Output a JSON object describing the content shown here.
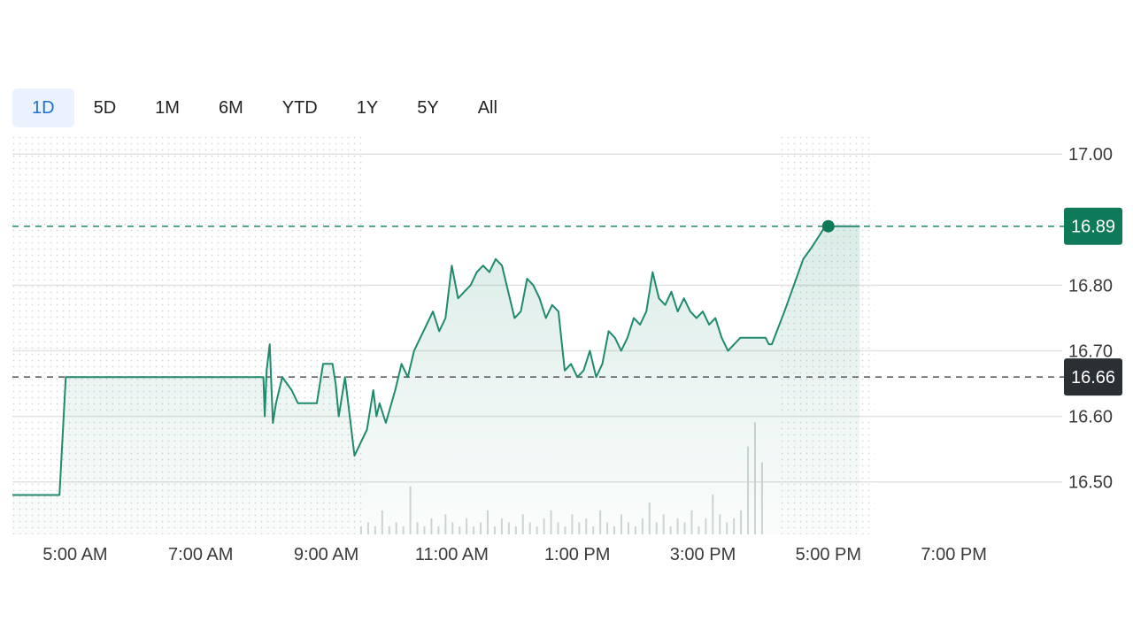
{
  "tabs": [
    {
      "label": "1D",
      "active": true
    },
    {
      "label": "5D",
      "active": false
    },
    {
      "label": "1M",
      "active": false
    },
    {
      "label": "6M",
      "active": false
    },
    {
      "label": "YTD",
      "active": false
    },
    {
      "label": "1Y",
      "active": false
    },
    {
      "label": "5Y",
      "active": false
    },
    {
      "label": "All",
      "active": false
    }
  ],
  "colors": {
    "line": "#1f8a6e",
    "last_badge": "#0f7a5a",
    "prev_badge": "#2a2f33",
    "active_tab_text": "#1f6fd1",
    "active_tab_bg": "#eaf3fd"
  },
  "chart_data": {
    "type": "line",
    "x_tick_labels": [
      "5:00 AM",
      "7:00 AM",
      "9:00 AM",
      "11:00 AM",
      "1:00 PM",
      "3:00 PM",
      "5:00 PM",
      "7:00 PM"
    ],
    "y_tick_labels": [
      "17.00",
      "16.80",
      "16.70",
      "16.60",
      "16.50"
    ],
    "ylim": [
      16.42,
      17.03
    ],
    "xlim_hours": [
      4.0,
      20.5
    ],
    "last_price": "16.89",
    "previous_close": "16.66",
    "grid": true,
    "series": [
      {
        "x": [
          4.0,
          4.75,
          4.85,
          8.0,
          8.02,
          8.05,
          8.1,
          8.15,
          8.2,
          8.3,
          8.45,
          8.55,
          8.7,
          8.85,
          8.95,
          9.1,
          9.15,
          9.2,
          9.3,
          9.45,
          9.55,
          9.65,
          9.75,
          9.8,
          9.85,
          9.95,
          10.1,
          10.2,
          10.3,
          10.4,
          10.5,
          10.6,
          10.7,
          10.8,
          10.9,
          11.0,
          11.1,
          11.2,
          11.3,
          11.4,
          11.5,
          11.6,
          11.7,
          11.8,
          12.0,
          12.1,
          12.2,
          12.3,
          12.4,
          12.5,
          12.6,
          12.7,
          12.8,
          12.9,
          13.0,
          13.1,
          13.2,
          13.3,
          13.4,
          13.5,
          13.6,
          13.7,
          13.8,
          13.9,
          14.0,
          14.1,
          14.2,
          14.3,
          14.4,
          14.5,
          14.6,
          14.7,
          14.8,
          14.9,
          15.0,
          15.1,
          15.2,
          15.3,
          15.4,
          15.5,
          15.6,
          15.7,
          15.8,
          15.9,
          16.0,
          16.05,
          16.1,
          16.3,
          16.6,
          16.75,
          16.95,
          17.5
        ],
        "y": [
          16.48,
          16.48,
          16.66,
          16.66,
          16.6,
          16.67,
          16.71,
          16.59,
          16.62,
          16.66,
          16.64,
          16.62,
          16.62,
          16.62,
          16.68,
          16.68,
          16.65,
          16.6,
          16.66,
          16.54,
          16.56,
          16.58,
          16.64,
          16.6,
          16.62,
          16.59,
          16.64,
          16.68,
          16.66,
          16.7,
          16.72,
          16.74,
          16.76,
          16.73,
          16.75,
          16.83,
          16.78,
          16.79,
          16.8,
          16.82,
          16.83,
          16.82,
          16.84,
          16.83,
          16.75,
          16.76,
          16.81,
          16.8,
          16.78,
          16.75,
          16.77,
          16.76,
          16.67,
          16.68,
          16.66,
          16.67,
          16.7,
          16.66,
          16.68,
          16.73,
          16.72,
          16.7,
          16.72,
          16.75,
          16.74,
          16.76,
          16.82,
          16.78,
          16.77,
          16.79,
          16.76,
          16.78,
          16.76,
          16.75,
          16.76,
          16.74,
          16.75,
          16.72,
          16.7,
          16.71,
          16.72,
          16.72,
          16.72,
          16.72,
          16.72,
          16.71,
          16.71,
          16.76,
          16.84,
          16.86,
          16.89,
          16.89
        ]
      }
    ],
    "volume": [
      0.02,
      0.03,
      0.02,
      0.06,
      0.02,
      0.03,
      0.02,
      0.12,
      0.03,
      0.02,
      0.04,
      0.02,
      0.05,
      0.03,
      0.02,
      0.04,
      0.02,
      0.03,
      0.06,
      0.02,
      0.04,
      0.03,
      0.02,
      0.05,
      0.03,
      0.02,
      0.04,
      0.06,
      0.03,
      0.02,
      0.05,
      0.03,
      0.04,
      0.02,
      0.06,
      0.03,
      0.02,
      0.05,
      0.03,
      0.02,
      0.04,
      0.08,
      0.03,
      0.05,
      0.02,
      0.04,
      0.03,
      0.06,
      0.02,
      0.04,
      0.1,
      0.05,
      0.03,
      0.04,
      0.06,
      0.22,
      0.28,
      0.18
    ]
  }
}
